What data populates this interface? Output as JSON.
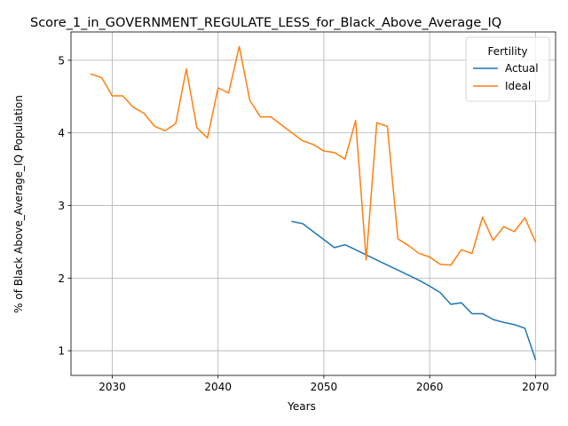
{
  "chart_data": {
    "type": "line",
    "title": "Score_1_in_GOVERNMENT_REGULATE_LESS_for_Black_Above_Average_IQ",
    "xlabel": "Years",
    "ylabel": "% of Black Above_Average_IQ Population",
    "xlim": [
      2026.1,
      2071.9
    ],
    "ylim": [
      0.66,
      5.39
    ],
    "xticks": [
      2030,
      2040,
      2050,
      2060,
      2070
    ],
    "yticks": [
      1,
      2,
      3,
      4,
      5
    ],
    "grid": true,
    "legend": {
      "title": "Fertility",
      "placement": "top-right"
    },
    "series": [
      {
        "name": "Actual",
        "color": "#1f77b4",
        "x": [
          2047,
          2048,
          2049,
          2050,
          2051,
          2052,
          2053,
          2054,
          2055,
          2056,
          2057,
          2058,
          2059,
          2060,
          2061,
          2062,
          2063,
          2064,
          2065,
          2066,
          2067,
          2068,
          2069,
          2070
        ],
        "y": [
          2.78,
          2.75,
          2.64,
          2.53,
          2.42,
          2.46,
          2.39,
          2.32,
          2.25,
          2.18,
          2.11,
          2.04,
          1.97,
          1.89,
          1.8,
          1.64,
          1.66,
          1.51,
          1.51,
          1.43,
          1.39,
          1.36,
          1.31,
          0.88
        ]
      },
      {
        "name": "Ideal",
        "color": "#ff7f0e",
        "x": [
          2028,
          2029,
          2030,
          2031,
          2032,
          2033,
          2034,
          2035,
          2036,
          2037,
          2038,
          2039,
          2040,
          2041,
          2042,
          2043,
          2044,
          2045,
          2046,
          2047,
          2048,
          2049,
          2050,
          2051,
          2052,
          2053,
          2054,
          2055,
          2056,
          2057,
          2058,
          2059,
          2060,
          2061,
          2062,
          2063,
          2064,
          2065,
          2066,
          2067,
          2068,
          2069,
          2070
        ],
        "y": [
          4.81,
          4.76,
          4.51,
          4.51,
          4.35,
          4.27,
          4.09,
          4.03,
          4.13,
          4.88,
          4.07,
          3.93,
          4.62,
          4.55,
          5.19,
          4.45,
          4.22,
          4.22,
          4.11,
          4.0,
          3.89,
          3.84,
          3.75,
          3.73,
          3.64,
          4.17,
          2.25,
          4.14,
          4.09,
          2.54,
          2.45,
          2.34,
          2.29,
          2.19,
          2.18,
          2.39,
          2.34,
          2.84,
          2.52,
          2.71,
          2.64,
          2.83,
          2.5
        ]
      }
    ]
  }
}
